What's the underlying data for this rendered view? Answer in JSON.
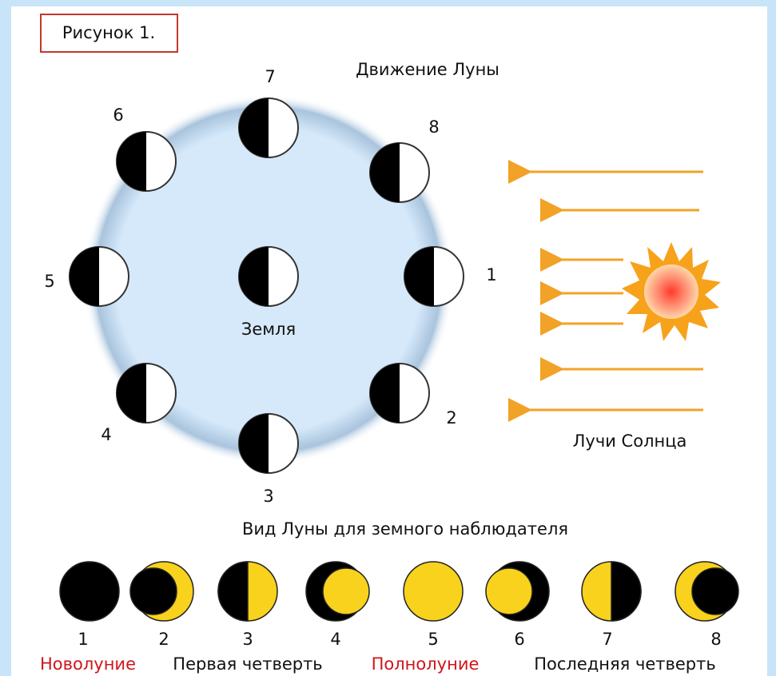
{
  "figure_label": "Рисунок 1.",
  "title": "Движение Луны",
  "earth_label": "Земля",
  "sun_label": "Лучи Солнца",
  "orbit_positions": [
    "1",
    "2",
    "3",
    "4",
    "5",
    "6",
    "7",
    "8"
  ],
  "view_title": "Вид Луны для земного наблюдателя",
  "phase_numbers": [
    "1",
    "2",
    "3",
    "4",
    "5",
    "6",
    "7",
    "8"
  ],
  "phase_names": [
    "Новолуние",
    "Первая четверть",
    "Полнолуние",
    "Последняя четверть"
  ]
}
